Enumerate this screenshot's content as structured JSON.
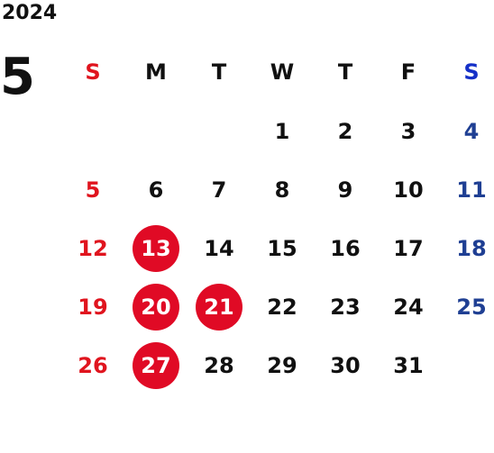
{
  "calendar": {
    "year": "2024",
    "month": "5",
    "weekdays": [
      "S",
      "M",
      "T",
      "W",
      "T",
      "F",
      "S"
    ],
    "weeks": [
      [
        "",
        "",
        "",
        "1",
        "2",
        "3",
        "4"
      ],
      [
        "5",
        "6",
        "7",
        "8",
        "9",
        "10",
        "11"
      ],
      [
        "12",
        "13",
        "14",
        "15",
        "16",
        "17",
        "18"
      ],
      [
        "19",
        "20",
        "21",
        "22",
        "23",
        "24",
        "25"
      ],
      [
        "26",
        "27",
        "28",
        "29",
        "30",
        "31",
        ""
      ]
    ],
    "highlighted_days": [
      "13",
      "20",
      "21",
      "27"
    ]
  },
  "colors": {
    "sunday": "#e0141e",
    "saturday": "#1f3f93",
    "saturday_header": "#1530c8",
    "highlight_circle": "#e00a25",
    "text": "#111111"
  }
}
